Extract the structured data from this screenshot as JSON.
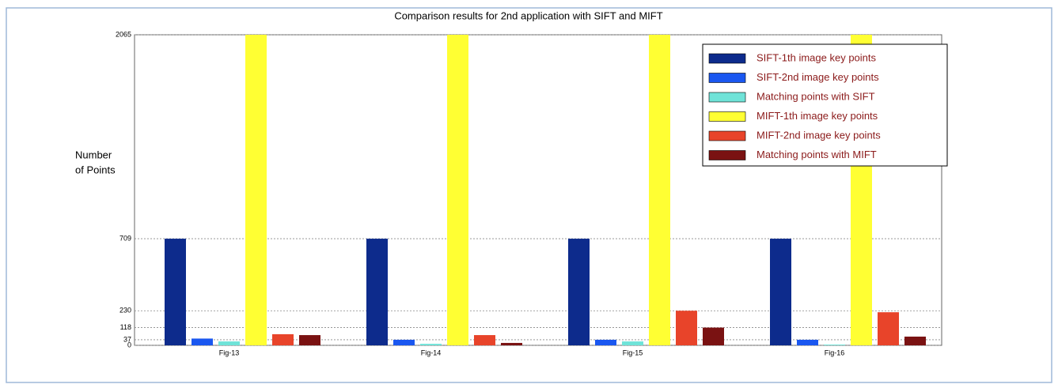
{
  "chart_data": {
    "type": "bar",
    "title": "Comparison results for 2nd application with SIFT and MIFT",
    "y_label": [
      "Number",
      "of Points"
    ],
    "categories": [
      "Fig-13",
      "Fig-14",
      "Fig-15",
      "Fig-16"
    ],
    "series": [
      {
        "name": "SIFT-1th image key points",
        "color": "#0d2b8c",
        "values": [
          709,
          709,
          709,
          709
        ]
      },
      {
        "name": "SIFT-2nd image key points",
        "color": "#1a57f0",
        "values": [
          45,
          37,
          37,
          37
        ]
      },
      {
        "name": "Matching points with SIFT",
        "color": "#6fe3d8",
        "values": [
          26,
          10,
          26,
          5
        ]
      },
      {
        "name": "MIFT-1th image key points",
        "color": "#ffff33",
        "values": [
          2065,
          2065,
          2065,
          2065
        ]
      },
      {
        "name": "MIFT-2nd image key points",
        "color": "#e8442a",
        "values": [
          74,
          68,
          230,
          220
        ]
      },
      {
        "name": "Matching points with MIFT",
        "color": "#7a1212",
        "values": [
          68,
          16,
          118,
          58
        ]
      }
    ],
    "ylim": [
      0,
      2065
    ],
    "yticks": [
      0,
      37,
      118,
      230,
      709,
      2065
    ],
    "grid": true,
    "legend": "upper right"
  }
}
